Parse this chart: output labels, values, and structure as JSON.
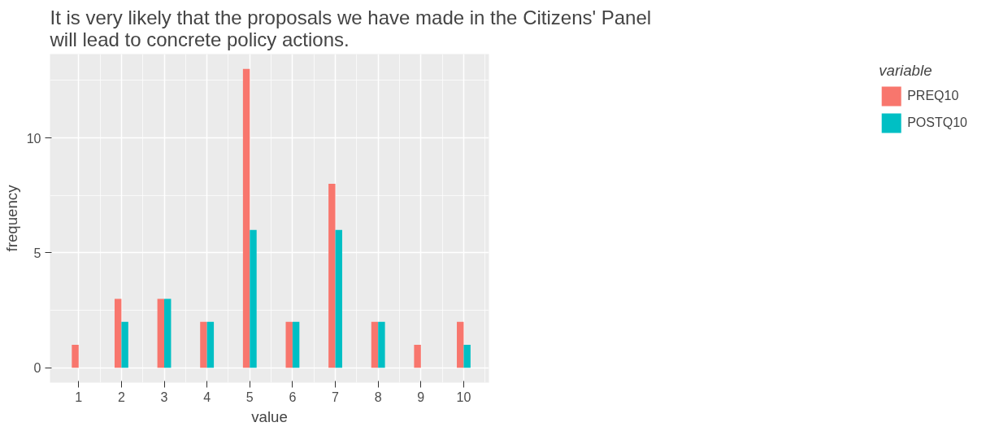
{
  "chart_data": {
    "type": "bar",
    "title": "It is very likely that the proposals we have made in the Citizens' Panel\nwill lead to concrete policy actions.",
    "xlabel": "value",
    "ylabel": "frequency",
    "legend_title": "variable",
    "x": [
      1,
      2,
      3,
      4,
      5,
      6,
      7,
      8,
      9,
      10
    ],
    "series": [
      {
        "name": "PREQ10",
        "color": "#f8766d",
        "values": [
          1,
          3,
          3,
          2,
          13,
          2,
          8,
          2,
          1,
          2
        ]
      },
      {
        "name": "POSTQ10",
        "color": "#00bfc4",
        "values": [
          0,
          2,
          3,
          2,
          6,
          2,
          6,
          2,
          0,
          1
        ]
      }
    ],
    "xlim": [
      0.33,
      10.59
    ],
    "xticks": [
      1,
      2,
      3,
      4,
      5,
      6,
      7,
      8,
      9,
      10
    ],
    "ylim": [
      -0.65,
      13.65
    ],
    "yticks": [
      0,
      5,
      10
    ],
    "grid": true,
    "legend": "right"
  }
}
